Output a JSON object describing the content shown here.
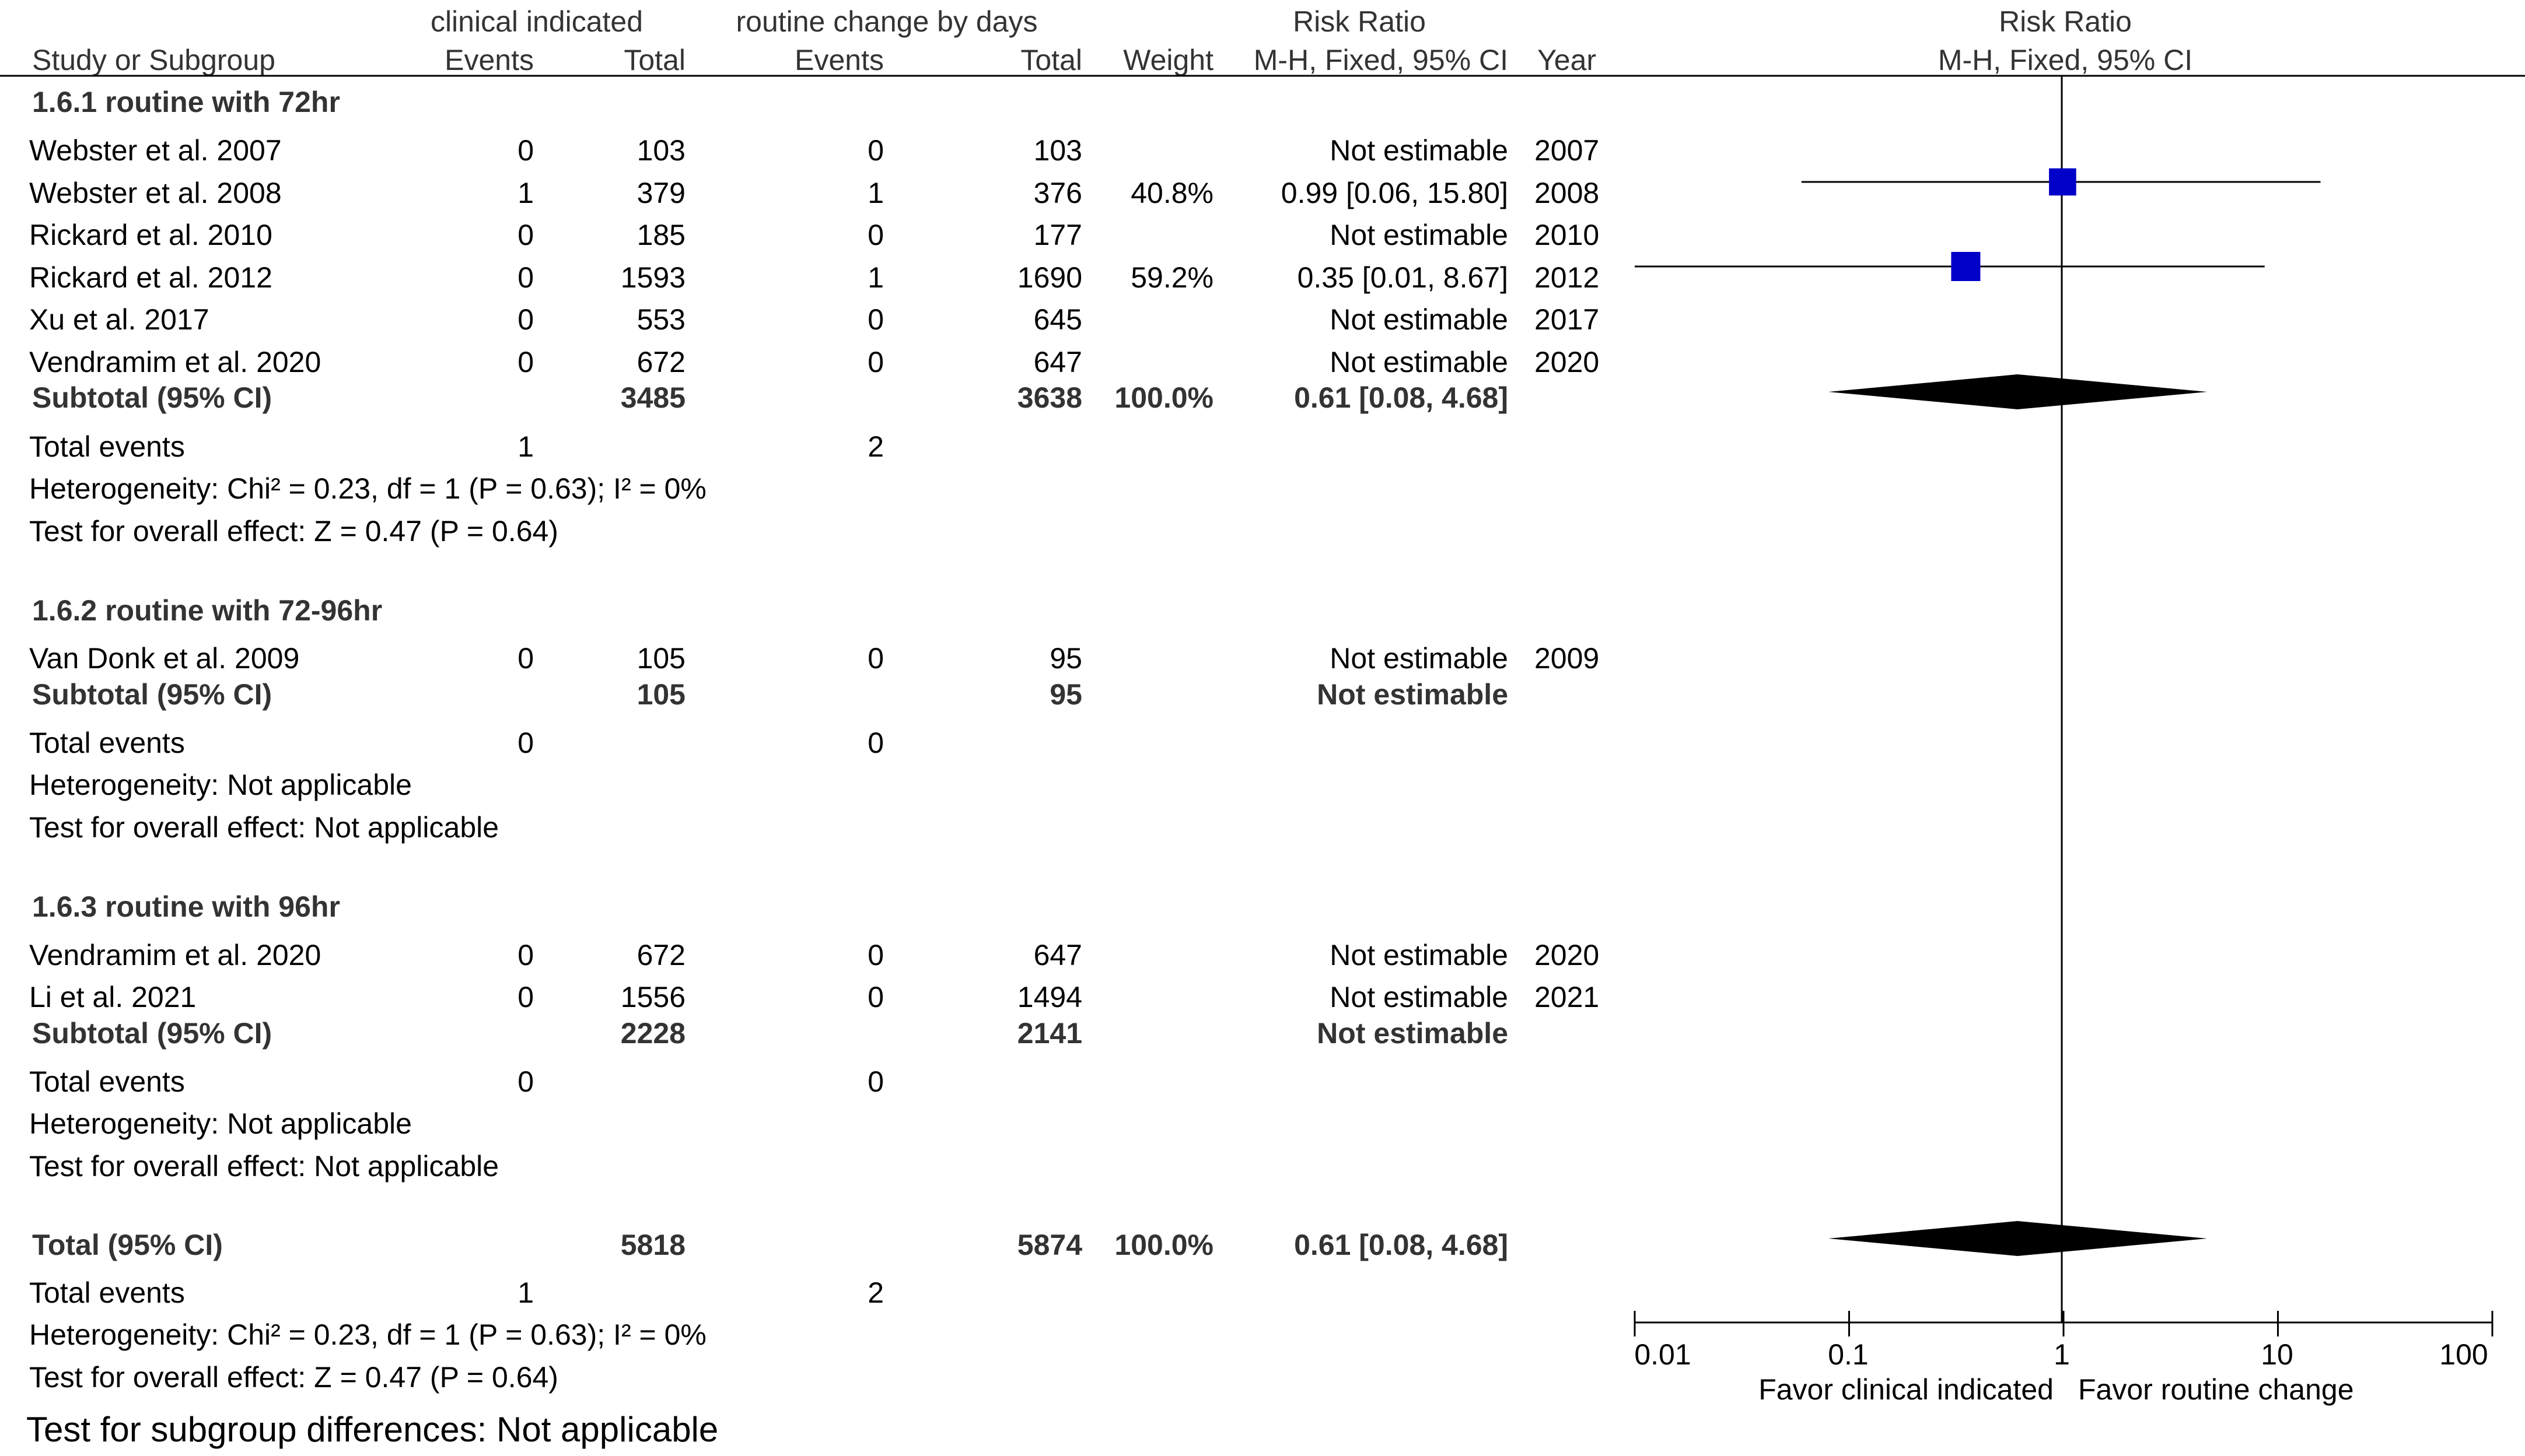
{
  "header": {
    "group1": "clinical indicated",
    "group2": "routine change by days",
    "rr_title": "Risk Ratio",
    "rr_method": "M-H, Fixed, 95% CI",
    "plot_title": "Risk Ratio",
    "plot_method": "M-H, Fixed, 95% CI",
    "col_study": "Study or Subgroup",
    "col_events1": "Events",
    "col_total1": "Total",
    "col_events2": "Events",
    "col_total2": "Total",
    "col_weight": "Weight",
    "col_year": "Year"
  },
  "subgroups": [
    {
      "title": "1.6.1 routine with 72hr",
      "studies": [
        {
          "name": "Webster et al. 2007",
          "e1": "0",
          "n1": "103",
          "e2": "0",
          "n2": "103",
          "weight": "",
          "rr": "Not estimable",
          "year": "2007"
        },
        {
          "name": "Webster et al. 2008",
          "e1": "1",
          "n1": "379",
          "e2": "1",
          "n2": "376",
          "weight": "40.8%",
          "rr": "0.99 [0.06, 15.80]",
          "year": "2008"
        },
        {
          "name": "Rickard et al. 2010",
          "e1": "0",
          "n1": "185",
          "e2": "0",
          "n2": "177",
          "weight": "",
          "rr": "Not estimable",
          "year": "2010"
        },
        {
          "name": "Rickard et al. 2012",
          "e1": "0",
          "n1": "1593",
          "e2": "1",
          "n2": "1690",
          "weight": "59.2%",
          "rr": "0.35 [0.01, 8.67]",
          "year": "2012"
        },
        {
          "name": "Xu et al. 2017",
          "e1": "0",
          "n1": "553",
          "e2": "0",
          "n2": "645",
          "weight": "",
          "rr": "Not estimable",
          "year": "2017"
        },
        {
          "name": "Vendramim et al. 2020",
          "e1": "0",
          "n1": "672",
          "e2": "0",
          "n2": "647",
          "weight": "",
          "rr": "Not estimable",
          "year": "2020"
        }
      ],
      "subtotal": {
        "label": "Subtotal (95% CI)",
        "n1": "3485",
        "n2": "3638",
        "weight": "100.0%",
        "rr": "0.61 [0.08, 4.68]"
      },
      "total_events": {
        "label": "Total events",
        "e1": "1",
        "e2": "2"
      },
      "heterogeneity": "Heterogeneity: Chi² = 0.23, df = 1 (P = 0.63); I² = 0%",
      "overall": "Test for overall effect: Z = 0.47 (P = 0.64)"
    },
    {
      "title": "1.6.2 routine with 72-96hr",
      "studies": [
        {
          "name": "Van Donk et al. 2009",
          "e1": "0",
          "n1": "105",
          "e2": "0",
          "n2": "95",
          "weight": "",
          "rr": "Not estimable",
          "year": "2009"
        }
      ],
      "subtotal": {
        "label": "Subtotal (95% CI)",
        "n1": "105",
        "n2": "95",
        "weight": "",
        "rr": "Not estimable"
      },
      "total_events": {
        "label": "Total events",
        "e1": "0",
        "e2": "0"
      },
      "heterogeneity": "Heterogeneity: Not applicable",
      "overall": "Test for overall effect: Not applicable"
    },
    {
      "title": "1.6.3 routine with 96hr",
      "studies": [
        {
          "name": "Vendramim et al. 2020",
          "e1": "0",
          "n1": "672",
          "e2": "0",
          "n2": "647",
          "weight": "",
          "rr": "Not estimable",
          "year": "2020"
        },
        {
          "name": "Li et al. 2021",
          "e1": "0",
          "n1": "1556",
          "e2": "0",
          "n2": "1494",
          "weight": "",
          "rr": "Not estimable",
          "year": "2021"
        }
      ],
      "subtotal": {
        "label": "Subtotal (95% CI)",
        "n1": "2228",
        "n2": "2141",
        "weight": "",
        "rr": "Not estimable"
      },
      "total_events": {
        "label": "Total events",
        "e1": "0",
        "e2": "0"
      },
      "heterogeneity": "Heterogeneity: Not applicable",
      "overall": "Test for overall effect: Not applicable"
    }
  ],
  "total": {
    "label": "Total (95% CI)",
    "n1": "5818",
    "n2": "5874",
    "weight": "100.0%",
    "rr": "0.61 [0.08, 4.68]",
    "total_events": {
      "label": "Total events",
      "e1": "1",
      "e2": "2"
    },
    "heterogeneity": "Heterogeneity: Chi² = 0.23, df = 1 (P = 0.63); I² = 0%",
    "overall": "Test for overall effect: Z = 0.47 (P = 0.64)"
  },
  "subgroup_diff": "Test for subgroup differences: Not applicable",
  "axis": {
    "ticks": [
      "0.01",
      "0.1",
      "1",
      "10",
      "100"
    ],
    "favor_left": "Favor clinical indicated",
    "favor_right": "Favor routine change"
  },
  "colors": {
    "marker": "#0000c8",
    "diamond": "#000000",
    "line": "#000000"
  },
  "chart_data": {
    "type": "forest",
    "title": "Risk Ratio",
    "xlabel": "",
    "scale": "log",
    "xlim": [
      0.01,
      100
    ],
    "points": [
      {
        "label": "Webster et al. 2008",
        "estimate": 0.99,
        "lower": 0.06,
        "upper": 15.8,
        "weight": 40.8
      },
      {
        "label": "Rickard et al. 2012",
        "estimate": 0.35,
        "lower": 0.01,
        "upper": 8.67,
        "weight": 59.2
      }
    ],
    "diamonds": [
      {
        "label": "Subtotal (95% CI)",
        "estimate": 0.61,
        "lower": 0.08,
        "upper": 4.68
      },
      {
        "label": "Total (95% CI)",
        "estimate": 0.61,
        "lower": 0.08,
        "upper": 4.68
      }
    ]
  }
}
